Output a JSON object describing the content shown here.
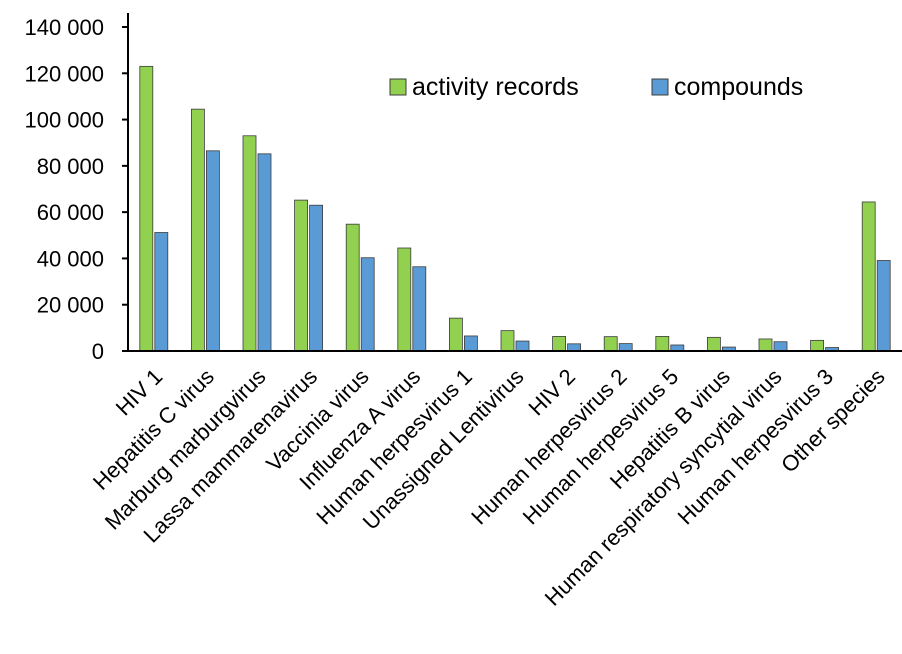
{
  "chart_data": {
    "type": "bar",
    "title": "",
    "xlabel": "",
    "ylabel": "",
    "ylim": [
      0,
      140000
    ],
    "yticks": [
      0,
      20000,
      40000,
      60000,
      80000,
      100000,
      120000,
      140000
    ],
    "ytick_labels": [
      "0",
      "20 000",
      "40 000",
      "60 000",
      "80 000",
      "100 000",
      "120 000",
      "140 000"
    ],
    "grid": false,
    "legend_position": "top-right",
    "categories": [
      "HIV 1",
      "Hepatitis C virus",
      "Marburg marburgvirus",
      "Lassa mammarenavirus",
      "Vaccinia virus",
      "Influenza A virus",
      "Human herpesvirus 1",
      "Unassigned Lentivirus",
      "HIV 2",
      "Human herpesvirus 2",
      "Human herpesvirus 5",
      "Hepatitis B virus",
      "Human respiratory syncytial virus",
      "Human herpesvirus 3",
      "Other species"
    ],
    "series": [
      {
        "name": "activity records",
        "color": "#92d050",
        "values": [
          123000,
          104500,
          93000,
          65200,
          54800,
          44500,
          14200,
          8800,
          6300,
          6200,
          6300,
          5900,
          5200,
          4600,
          64400
        ]
      },
      {
        "name": "compounds",
        "color": "#5b9bd5",
        "values": [
          51200,
          86500,
          85200,
          63000,
          40300,
          36400,
          6500,
          4300,
          3100,
          3200,
          2600,
          1700,
          4000,
          1500,
          39100
        ]
      }
    ]
  }
}
